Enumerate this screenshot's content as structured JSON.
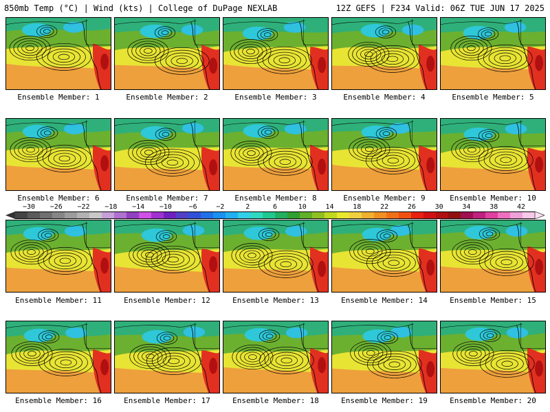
{
  "header": {
    "left_title": "850mb Temp (°C) | Wind (kts) | College of DuPage NEXLAB",
    "right_title": "12Z GEFS | F234 Valid: 06Z TUE JUN 17 2025"
  },
  "panels": [
    {
      "member": 1,
      "caption": "Ensemble Member: 1"
    },
    {
      "member": 2,
      "caption": "Ensemble Member: 2"
    },
    {
      "member": 3,
      "caption": "Ensemble Member: 3"
    },
    {
      "member": 4,
      "caption": "Ensemble Member: 4"
    },
    {
      "member": 5,
      "caption": "Ensemble Member: 5"
    },
    {
      "member": 6,
      "caption": "Ensemble Member: 6"
    },
    {
      "member": 7,
      "caption": "Ensemble Member: 7"
    },
    {
      "member": 8,
      "caption": "Ensemble Member: 8"
    },
    {
      "member": 9,
      "caption": "Ensemble Member: 9"
    },
    {
      "member": 10,
      "caption": "Ensemble Member: 10"
    },
    {
      "member": 11,
      "caption": "Ensemble Member: 11"
    },
    {
      "member": 12,
      "caption": "Ensemble Member: 12"
    },
    {
      "member": 13,
      "caption": "Ensemble Member: 13"
    },
    {
      "member": 14,
      "caption": "Ensemble Member: 14"
    },
    {
      "member": 15,
      "caption": "Ensemble Member: 15"
    },
    {
      "member": 16,
      "caption": "Ensemble Member: 16"
    },
    {
      "member": 17,
      "caption": "Ensemble Member: 17"
    },
    {
      "member": 18,
      "caption": "Ensemble Member: 18"
    },
    {
      "member": 19,
      "caption": "Ensemble Member: 19"
    },
    {
      "member": 20,
      "caption": "Ensemble Member: 20"
    }
  ],
  "colorbar": {
    "labels": [
      "−30",
      "−26",
      "−22",
      "−18",
      "−14",
      "−10",
      "−6",
      "−2",
      "2",
      "6",
      "10",
      "14",
      "18",
      "22",
      "26",
      "30",
      "34",
      "38",
      "42"
    ],
    "colors": [
      "#444444",
      "#5a5a5a",
      "#707070",
      "#868686",
      "#9c9c9c",
      "#b2b2b2",
      "#c8c8c8",
      "#c6a0d8",
      "#b070d0",
      "#9040c0",
      "#d050e8",
      "#a030d0",
      "#7020c0",
      "#5040c8",
      "#3050d8",
      "#2070e8",
      "#1a90f0",
      "#20b0f0",
      "#30d0e8",
      "#30d8c0",
      "#20c890",
      "#20b060",
      "#30a030",
      "#60b028",
      "#90c020",
      "#c0d820",
      "#e8e830",
      "#f0d040",
      "#f0b030",
      "#f09020",
      "#f07018",
      "#f05010",
      "#e82010",
      "#d01010",
      "#b01010",
      "#901010",
      "#a01050",
      "#c02080",
      "#e040a0",
      "#f070c0",
      "#f0a0d8",
      "#f8c8e8"
    ]
  }
}
